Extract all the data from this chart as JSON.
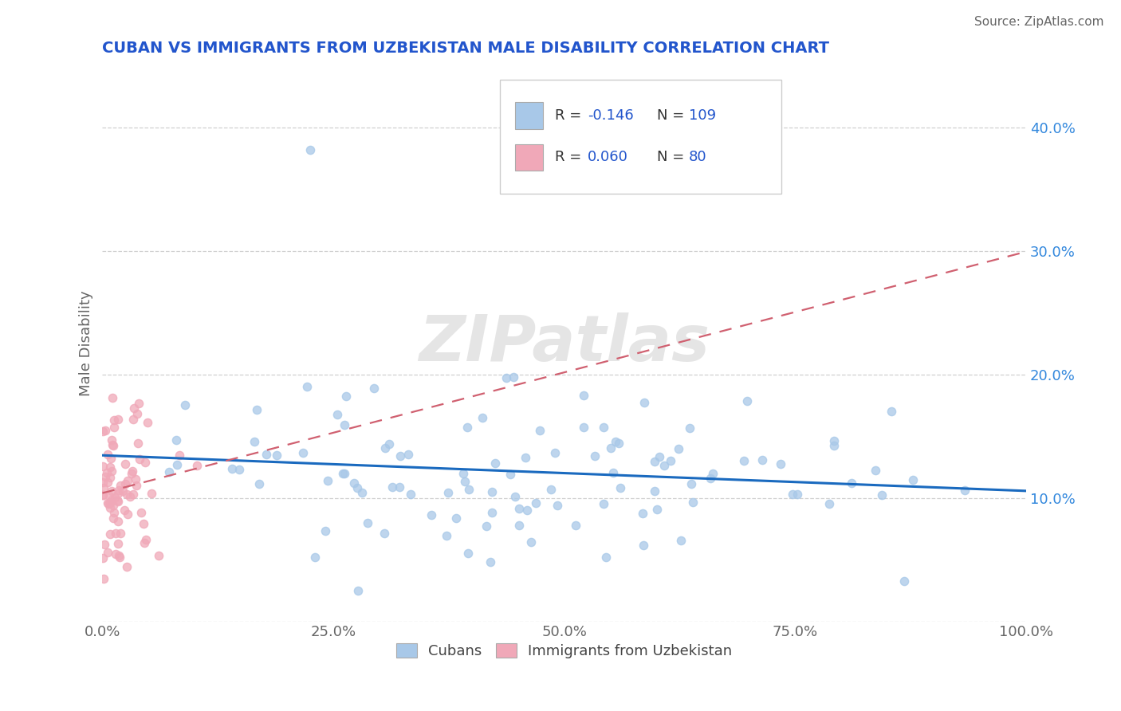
{
  "title": "CUBAN VS IMMIGRANTS FROM UZBEKISTAN MALE DISABILITY CORRELATION CHART",
  "source": "Source: ZipAtlas.com",
  "ylabel": "Male Disability",
  "xlim": [
    0.0,
    1.0
  ],
  "ylim": [
    0.0,
    0.45
  ],
  "yticks": [
    0.0,
    0.1,
    0.2,
    0.3,
    0.4
  ],
  "ytick_labels": [
    "",
    "10.0%",
    "20.0%",
    "30.0%",
    "40.0%"
  ],
  "xticks": [
    0.0,
    0.25,
    0.5,
    0.75,
    1.0
  ],
  "xtick_labels": [
    "0.0%",
    "25.0%",
    "50.0%",
    "75.0%",
    "100.0%"
  ],
  "legend_R1": "-0.146",
  "legend_N1": "109",
  "legend_R2": "0.060",
  "legend_N2": "80",
  "blue_color": "#a8c8e8",
  "pink_color": "#f0a8b8",
  "blue_line_color": "#1a6abf",
  "pink_line_color": "#d06070",
  "title_color": "#2255cc",
  "watermark": "ZIPatlas",
  "blue_R": -0.146,
  "pink_R": 0.06,
  "blue_N": 109,
  "pink_N": 80
}
